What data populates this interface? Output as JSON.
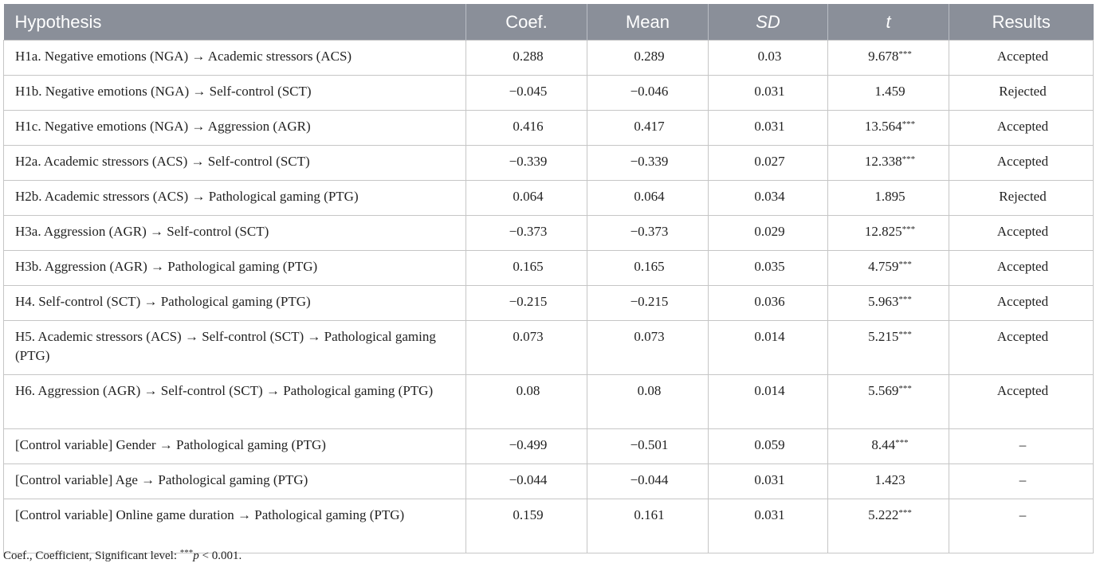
{
  "table": {
    "headers": {
      "hypothesis": "Hypothesis",
      "coef": "Coef.",
      "mean": "Mean",
      "sd": "SD",
      "t": "t",
      "results": "Results"
    },
    "header_bg": "#8a8f99",
    "rows": [
      {
        "hypothesis": "H1a. Negative emotions (NGA) →  Academic stressors (ACS)",
        "coef": "0.288",
        "mean": "0.289",
        "sd": "0.03",
        "t": "9.678",
        "sig": "***",
        "result": "Accepted"
      },
      {
        "hypothesis": "H1b. Negative emotions (NGA) →  Self-control (SCT)",
        "coef": "−0.045",
        "mean": "−0.046",
        "sd": "0.031",
        "t": "1.459",
        "sig": "",
        "result": "Rejected"
      },
      {
        "hypothesis": "H1c. Negative emotions (NGA) →  Aggression (AGR)",
        "coef": "0.416",
        "mean": "0.417",
        "sd": "0.031",
        "t": "13.564",
        "sig": "***",
        "result": "Accepted"
      },
      {
        "hypothesis": "H2a. Academic stressors (ACS) →  Self-control (SCT)",
        "coef": "−0.339",
        "mean": "−0.339",
        "sd": "0.027",
        "t": "12.338",
        "sig": "***",
        "result": "Accepted"
      },
      {
        "hypothesis": "H2b. Academic stressors (ACS) →  Pathological gaming (PTG)",
        "coef": "0.064",
        "mean": "0.064",
        "sd": "0.034",
        "t": "1.895",
        "sig": "",
        "result": "Rejected"
      },
      {
        "hypothesis": "H3a. Aggression (AGR) →  Self-control (SCT)",
        "coef": "−0.373",
        "mean": "−0.373",
        "sd": "0.029",
        "t": "12.825",
        "sig": "***",
        "result": "Accepted"
      },
      {
        "hypothesis": "H3b. Aggression (AGR) →  Pathological gaming (PTG)",
        "coef": "0.165",
        "mean": "0.165",
        "sd": "0.035",
        "t": "4.759",
        "sig": "***",
        "result": "Accepted"
      },
      {
        "hypothesis": "H4. Self-control (SCT) →  Pathological gaming (PTG)",
        "coef": "−0.215",
        "mean": "−0.215",
        "sd": "0.036",
        "t": "5.963",
        "sig": "***",
        "result": "Accepted"
      },
      {
        "hypothesis": "H5. Academic stressors (ACS) →  Self-control (SCT) →  Pathological gaming (PTG)",
        "coef": "0.073",
        "mean": "0.073",
        "sd": "0.014",
        "t": "5.215",
        "sig": "***",
        "result": "Accepted"
      },
      {
        "hypothesis": "H6. Aggression (AGR) →  Self-control (SCT) →  Pathological gaming (PTG)",
        "coef": "0.08",
        "mean": "0.08",
        "sd": "0.014",
        "t": "5.569",
        "sig": "***",
        "result": "Accepted"
      },
      {
        "hypothesis": "[Control variable] Gender →  Pathological gaming (PTG)",
        "coef": "−0.499",
        "mean": "−0.501",
        "sd": "0.059",
        "t": "8.44",
        "sig": "***",
        "result": "–"
      },
      {
        "hypothesis": "[Control variable] Age →  Pathological gaming (PTG)",
        "coef": "−0.044",
        "mean": "−0.044",
        "sd": "0.031",
        "t": "1.423",
        "sig": "",
        "result": "–"
      },
      {
        "hypothesis": "[Control variable] Online game duration →  Pathological gaming (PTG)",
        "coef": "0.159",
        "mean": "0.161",
        "sd": "0.031",
        "t": "5.222",
        "sig": "***",
        "result": "–"
      }
    ]
  },
  "footnote": {
    "prefix": "Coef., Coefficient, Significant level: ",
    "stars": "***",
    "p": "p",
    "suffix": " < 0.001."
  }
}
